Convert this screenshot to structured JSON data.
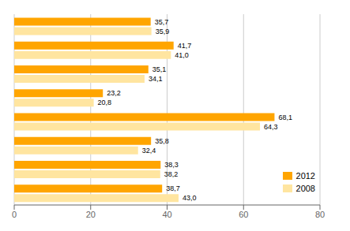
{
  "chart_data": {
    "type": "bar",
    "orientation": "horizontal",
    "categories": [
      null,
      null,
      null,
      null,
      null,
      null,
      null,
      null
    ],
    "series": [
      {
        "name": "2012",
        "color": "#FFA500",
        "values": [
          35.7,
          41.7,
          35.1,
          23.2,
          68.1,
          35.8,
          38.3,
          38.7
        ],
        "value_labels": [
          "35,7",
          "41,7",
          "35,1",
          "23,2",
          "68,1",
          "35,8",
          "38,3",
          "38,7"
        ]
      },
      {
        "name": "2008",
        "color": "#FFE5A0",
        "values": [
          35.9,
          41.0,
          34.1,
          20.8,
          64.3,
          32.4,
          38.2,
          43.0
        ],
        "value_labels": [
          "35,9",
          "41,0",
          "34,1",
          "20,8",
          "64,3",
          "32,4",
          "38,2",
          "43,0"
        ]
      }
    ],
    "xlim": [
      0,
      80
    ],
    "xticks": [
      0,
      20,
      40,
      60,
      80
    ],
    "grid": true,
    "legend": "lower right",
    "data_labels": true,
    "tick_labels": "x"
  }
}
